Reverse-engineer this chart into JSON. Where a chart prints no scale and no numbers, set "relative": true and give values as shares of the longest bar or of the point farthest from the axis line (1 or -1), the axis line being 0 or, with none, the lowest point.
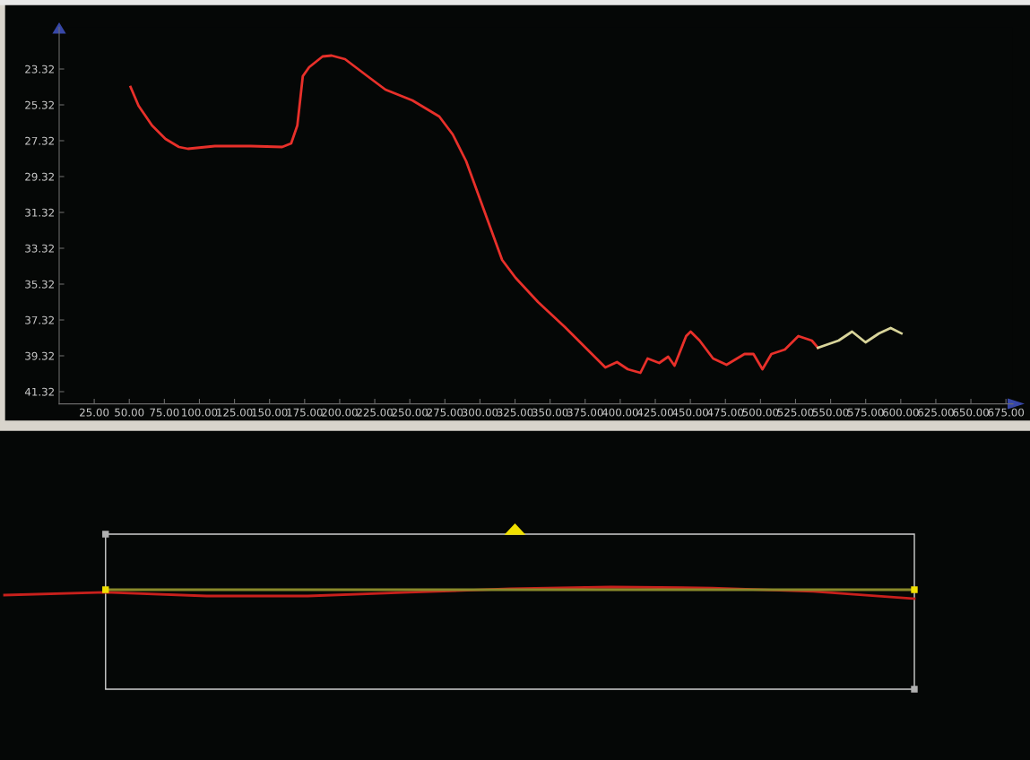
{
  "chart_data": [
    {
      "type": "line",
      "xlim": [
        0,
        680
      ],
      "ylim": [
        42,
        21
      ],
      "xticks": [
        {
          "value": 25,
          "label": "25.00"
        },
        {
          "value": 50,
          "label": "50.00"
        },
        {
          "value": 75,
          "label": "75.00"
        },
        {
          "value": 100,
          "label": "100.00"
        },
        {
          "value": 125,
          "label": "125.00"
        },
        {
          "value": 150,
          "label": "150.00"
        },
        {
          "value": 175,
          "label": "175.00"
        },
        {
          "value": 200,
          "label": "200.00"
        },
        {
          "value": 225,
          "label": "225.00"
        },
        {
          "value": 250,
          "label": "250.00"
        },
        {
          "value": 275,
          "label": "275.00"
        },
        {
          "value": 300,
          "label": "300.00"
        },
        {
          "value": 325,
          "label": "325.00"
        },
        {
          "value": 350,
          "label": "350.00"
        },
        {
          "value": 375,
          "label": "375.00"
        },
        {
          "value": 400,
          "label": "400.00"
        },
        {
          "value": 425,
          "label": "425.00"
        },
        {
          "value": 450,
          "label": "450.00"
        },
        {
          "value": 475,
          "label": "475.00"
        },
        {
          "value": 500,
          "label": "500.00"
        },
        {
          "value": 525,
          "label": "525.00"
        },
        {
          "value": 550,
          "label": "550.00"
        },
        {
          "value": 575,
          "label": "575.00"
        },
        {
          "value": 600,
          "label": "600.00"
        },
        {
          "value": 625,
          "label": "625.00"
        },
        {
          "value": 650,
          "label": "650.00"
        },
        {
          "value": 675,
          "label": "675.00"
        }
      ],
      "yticks": [
        23.32,
        25.32,
        27.32,
        29.32,
        31.32,
        33.32,
        35.32,
        37.32,
        39.32,
        41.32
      ],
      "grid": false,
      "legend": false,
      "marker": "none",
      "line_style": "solid",
      "series": [
        {
          "color": "#e8302a",
          "x": [
            50.9,
            56.6,
            66.2,
            75.8,
            85.4,
            91.8,
            111,
            136.6,
            159,
            165.4,
            169.8,
            173.7,
            178.2,
            187.8,
            194.2,
            203.8,
            219.8,
            232.6,
            251.8,
            271,
            280.6,
            290.2,
            303,
            315.8,
            325.4,
            341.4,
            360.6,
            379.8,
            389.4,
            397.7,
            405.4,
            414.4,
            419.5,
            427.8,
            434.2,
            438.7,
            447,
            450.2,
            456.6,
            466.2,
            475.8,
            488.6,
            495,
            501.4,
            507.8,
            517.4,
            527,
            536.6,
            541
          ],
          "values": [
            24.32,
            25.37,
            26.47,
            27.22,
            27.67,
            27.77,
            27.62,
            27.62,
            27.67,
            27.47,
            26.47,
            23.72,
            23.22,
            22.62,
            22.57,
            22.77,
            23.72,
            24.47,
            25.07,
            25.97,
            26.97,
            28.47,
            31.22,
            33.97,
            34.97,
            36.32,
            37.72,
            39.22,
            39.97,
            39.67,
            40.07,
            40.27,
            39.47,
            39.72,
            39.37,
            39.87,
            38.22,
            37.97,
            38.47,
            39.47,
            39.82,
            39.22,
            39.22,
            40.07,
            39.22,
            38.97,
            38.22,
            38.47,
            38.87
          ]
        },
        {
          "color": "#d8d49a",
          "x": [
            541,
            555.7,
            565.3,
            574.9,
            584.5,
            592.8,
            600.5
          ],
          "values": [
            38.87,
            38.47,
            37.97,
            38.57,
            38.07,
            37.77,
            38.07
          ]
        }
      ]
    },
    {
      "type": "line",
      "relative": true,
      "legend": false,
      "categories": [
        null,
        null,
        null,
        null,
        null,
        null,
        null,
        null,
        null,
        null
      ],
      "series": [
        {
          "color": "#c8201c",
          "values": [
            0.31,
            0.54,
            0.23,
            0.23,
            0.54,
            0.85,
            1,
            0.92,
            0.62,
            0
          ]
        },
        {
          "color": "#8a8a2a",
          "values": [
            null,
            0.77,
            0.77,
            0.77,
            0.77,
            0.77,
            0.77,
            0.77,
            0.77,
            0.77
          ]
        }
      ]
    }
  ]
}
